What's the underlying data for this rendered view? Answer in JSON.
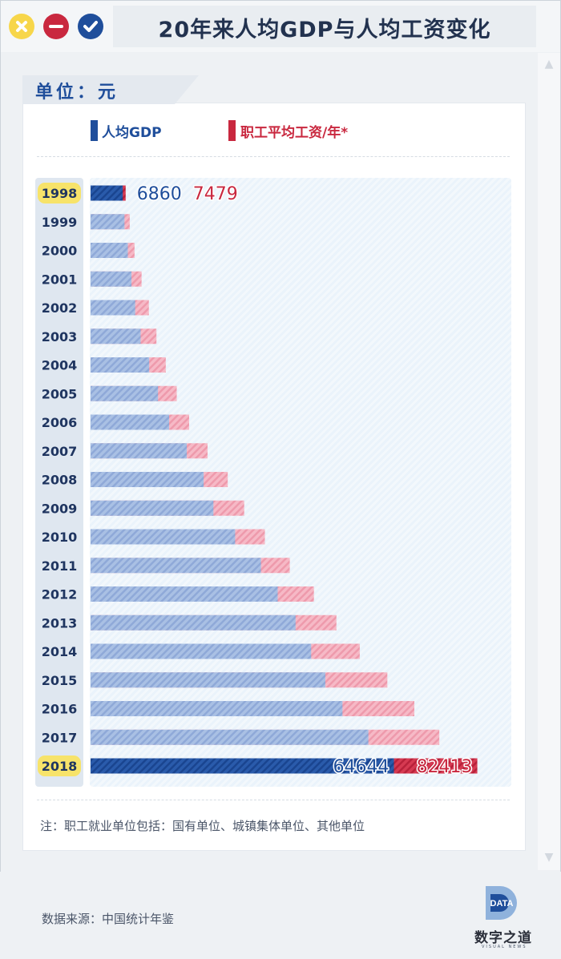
{
  "window": {
    "title": "20年来人均GDP与人均工资变化"
  },
  "unit_label": "单位：元",
  "legend": {
    "gdp_label": "人均GDP",
    "wage_label": "职工平均工资/年*"
  },
  "colors": {
    "gdp": "#1f4e9b",
    "gdp_light": "#9bb6e0",
    "wage": "#c9283f",
    "wage_light": "#f2a6b6",
    "highlight_year": "#f7e36a"
  },
  "chart_data": {
    "type": "bar",
    "orientation": "horizontal",
    "categories": [
      "1998",
      "1999",
      "2000",
      "2001",
      "2002",
      "2003",
      "2004",
      "2005",
      "2006",
      "2007",
      "2008",
      "2009",
      "2010",
      "2011",
      "2012",
      "2013",
      "2014",
      "2015",
      "2016",
      "2017",
      "2018"
    ],
    "series": [
      {
        "name": "人均GDP",
        "values": [
          6860,
          7229,
          7942,
          8717,
          9506,
          10666,
          12487,
          14368,
          16738,
          20494,
          24100,
          26180,
          30808,
          36302,
          39874,
          43684,
          47005,
          50028,
          53680,
          59201,
          64644
        ]
      },
      {
        "name": "职工平均工资/年*",
        "values": [
          7479,
          8346,
          9371,
          10870,
          12422,
          14040,
          16024,
          18364,
          21001,
          24932,
          29229,
          32736,
          37147,
          42452,
          47593,
          52388,
          57361,
          63241,
          68993,
          74318,
          82413
        ]
      }
    ],
    "highlighted_categories": [
      "1998",
      "2018"
    ],
    "data_labels": [
      {
        "category": "1998",
        "gdp": "6860",
        "wage": "7479"
      },
      {
        "category": "2018",
        "gdp": "64644",
        "wage": "82413"
      }
    ],
    "xlim": [
      0,
      90000
    ]
  },
  "note": "注：职工就业单位包括：国有单位、城镇集体单位、其他单位",
  "footer": {
    "source": "数据来源：中国统计年鉴",
    "logo_text": "DATA",
    "brand_cn": "数字之道",
    "brand_en": "VISUAL NEWS"
  }
}
